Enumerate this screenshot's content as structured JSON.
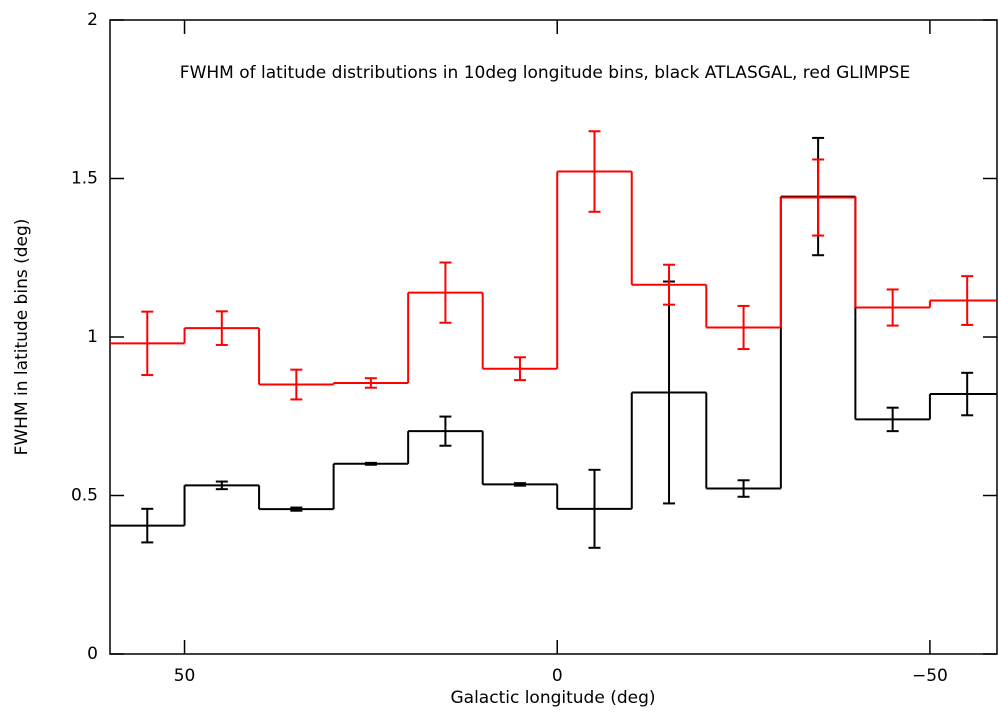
{
  "chart_data": {
    "type": "histogram",
    "title": "FWHM of latitude distributions in 10deg longitude bins, black ATLASGAL, red GLIMPSE",
    "x_label": "Galactic longitude (deg)",
    "y_label": "FWHM in latitude bins (deg)",
    "bins": [
      60,
      50,
      40,
      30,
      20,
      10,
      0,
      -10,
      -20,
      -30,
      -40,
      -50,
      -60
    ],
    "series": [
      {
        "name": "ATLASGAL",
        "color": "#000000",
        "values": [
          0.405,
          0.532,
          0.457,
          0.6,
          0.703,
          0.535,
          0.458,
          0.825,
          0.522,
          1.443,
          0.74,
          0.82
        ],
        "errors": [
          0.053,
          0.012,
          0.005,
          0.003,
          0.046,
          0.004,
          0.123,
          0.35,
          0.026,
          0.185,
          0.037,
          0.067
        ]
      },
      {
        "name": "GLIMPSE",
        "color": "#ff0000",
        "values": [
          0.98,
          1.028,
          0.85,
          0.855,
          1.14,
          0.9,
          1.522,
          1.165,
          1.03,
          1.44,
          1.093,
          1.115
        ],
        "errors": [
          0.1,
          0.053,
          0.047,
          0.015,
          0.095,
          0.036,
          0.127,
          0.063,
          0.068,
          0.12,
          0.057,
          0.077
        ]
      }
    ],
    "xlim": [
      60,
      -59
    ],
    "ylim": [
      0,
      2
    ],
    "xticks": [
      50,
      0,
      {
        "value": -50,
        "label": "−50"
      }
    ],
    "yticks": [
      0,
      0.5,
      1,
      1.5,
      2
    ]
  }
}
